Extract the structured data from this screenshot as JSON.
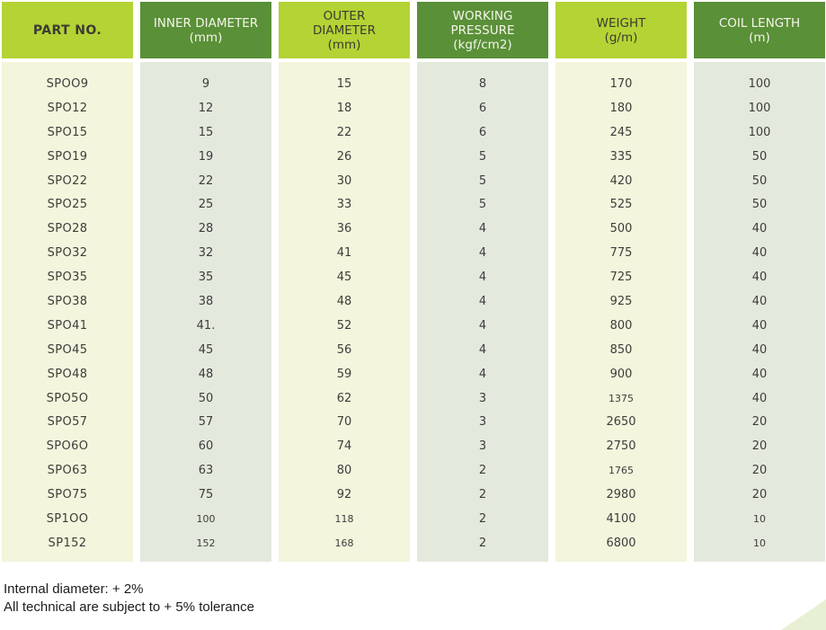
{
  "colors": {
    "header_lime": "#b4d334",
    "header_green": "#5a9038",
    "header_text_dark": "#3b3b33",
    "header_text_light": "#f5f5ea",
    "body_cream": "#f3f5dc",
    "body_sage": "#e3e9dd",
    "cell_text": "#3d3d3d",
    "corner_triangle": "#e8f0d4"
  },
  "table": {
    "columns": [
      {
        "id": "part-no",
        "label": "PART NO.",
        "unit": "",
        "style": "lime"
      },
      {
        "id": "inner-diameter",
        "label": "INNER DIAMETER",
        "unit": "(mm)",
        "style": "green"
      },
      {
        "id": "outer-diameter",
        "label": "OUTER DIAMETER",
        "unit": "(mm)",
        "style": "lime"
      },
      {
        "id": "working-pressure",
        "label": "WORKING PRESSURE",
        "unit": "(kgf/cm2)",
        "style": "green"
      },
      {
        "id": "weight",
        "label": "WEIGHT",
        "unit": "(g/m)",
        "style": "lime"
      },
      {
        "id": "coil-length",
        "label": "COIL LENGTH",
        "unit": "(m)",
        "style": "green"
      }
    ],
    "rows": [
      [
        "SPOO9",
        "9",
        "15",
        "8",
        "170",
        "100"
      ],
      [
        "SPO12",
        "12",
        "18",
        "6",
        "180",
        "100"
      ],
      [
        "SPO15",
        "15",
        "22",
        "6",
        "245",
        "100"
      ],
      [
        "SPO19",
        "19",
        "26",
        "5",
        "335",
        "50"
      ],
      [
        "SPO22",
        "22",
        "30",
        "5",
        "420",
        "50"
      ],
      [
        "SPO25",
        "25",
        "33",
        "5",
        "525",
        "50"
      ],
      [
        "SPO28",
        "28",
        "36",
        "4",
        "500",
        "40"
      ],
      [
        "SPO32",
        "32",
        "41",
        "4",
        "775",
        "40"
      ],
      [
        "SPO35",
        "35",
        "45",
        "4",
        "725",
        "40"
      ],
      [
        "SPO38",
        "38",
        "48",
        "4",
        "925",
        "40"
      ],
      [
        "SPO41",
        "41.",
        "52",
        "4",
        "800",
        "40"
      ],
      [
        "SPO45",
        "45",
        "56",
        "4",
        "850",
        "40"
      ],
      [
        "SPO48",
        "48",
        "59",
        "4",
        "900",
        "40"
      ],
      [
        "SPO5O",
        "50",
        "62",
        "3",
        "1375",
        "40"
      ],
      [
        "SPO57",
        "57",
        "70",
        "3",
        "2650",
        "20"
      ],
      [
        "SPO6O",
        "60",
        "74",
        "3",
        "2750",
        "20"
      ],
      [
        "SPO63",
        "63",
        "80",
        "2",
        "1765",
        "20"
      ],
      [
        "SPO75",
        "75",
        "92",
        "2",
        "2980",
        "20"
      ],
      [
        "SP1OO",
        "100",
        "118",
        "2",
        "4100",
        "10"
      ],
      [
        "SP152",
        "152",
        "168",
        "2",
        "6800",
        "10"
      ]
    ],
    "small_cells": [
      [
        13,
        4
      ],
      [
        16,
        4
      ],
      [
        18,
        1
      ],
      [
        18,
        2
      ],
      [
        18,
        5
      ],
      [
        19,
        1
      ],
      [
        19,
        2
      ],
      [
        19,
        5
      ]
    ]
  },
  "footer": {
    "line1": "Internal diameter: + 2%",
    "line2": "All technical are subject to + 5% tolerance"
  }
}
